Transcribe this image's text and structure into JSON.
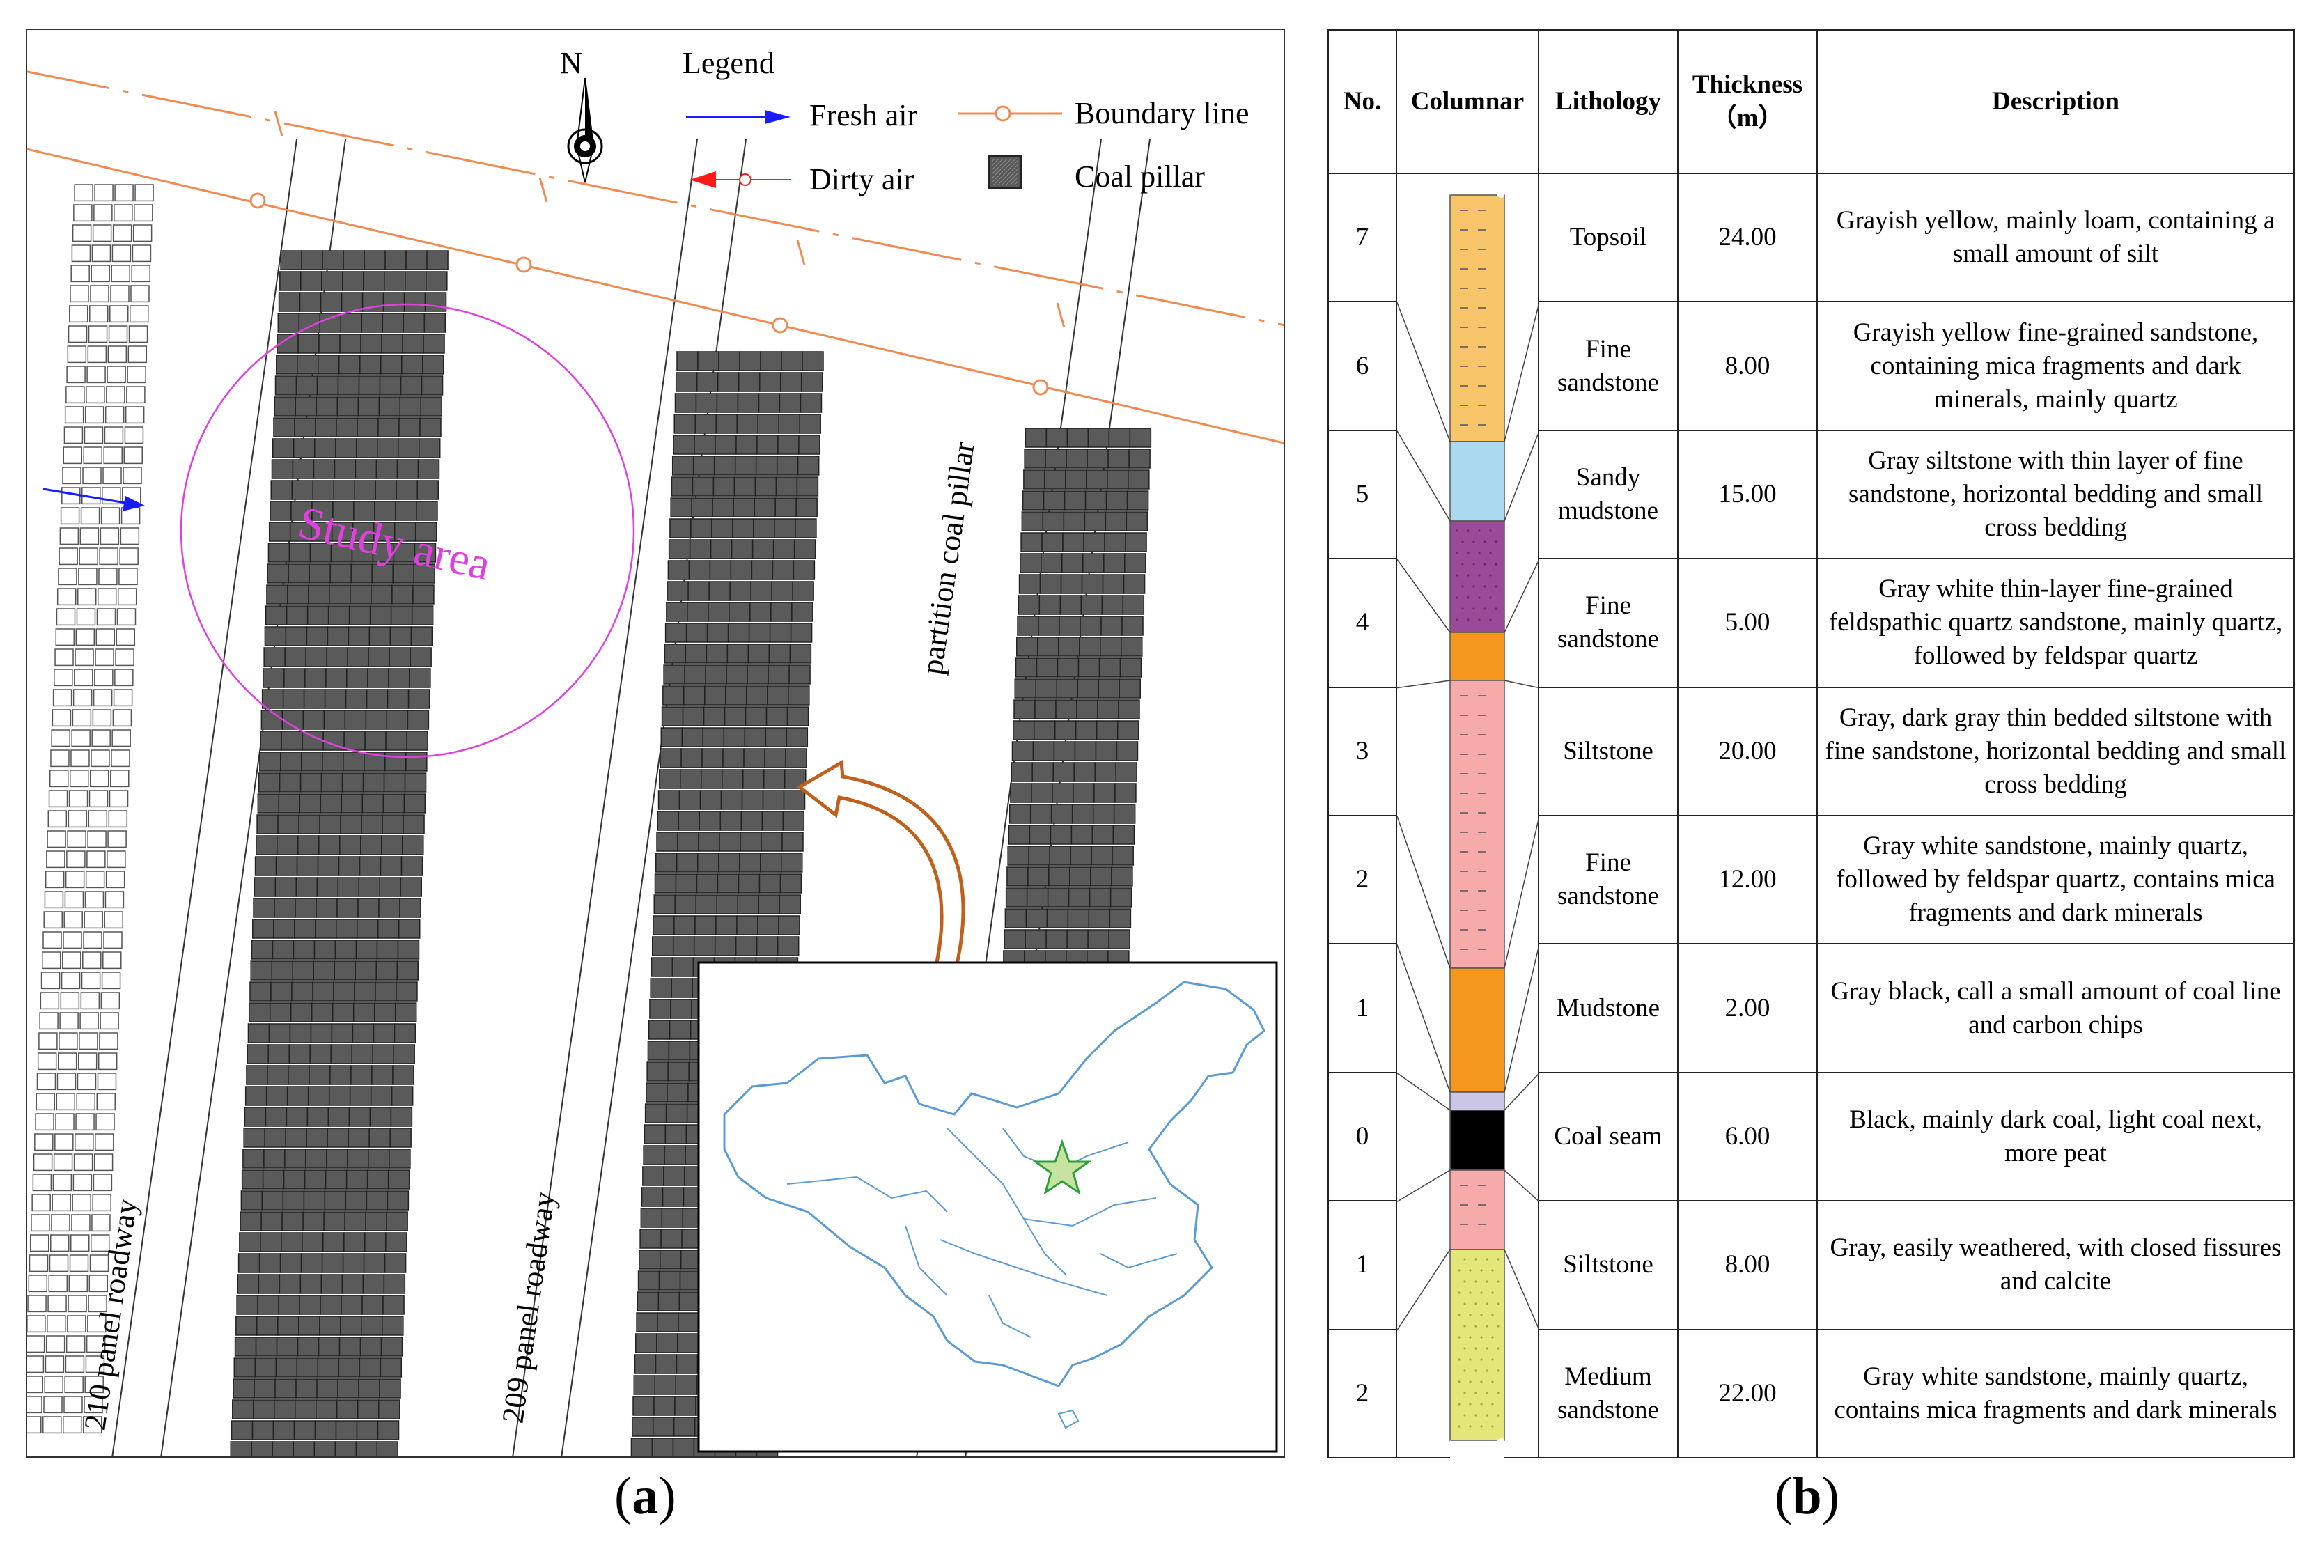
{
  "panel_a": {
    "north_label": "N",
    "legend": {
      "title": "Legend",
      "items": [
        {
          "label": "Fresh air",
          "color": "#1a1aff",
          "icon": "blue-arrow-icon"
        },
        {
          "label": "Dirty air",
          "color": "#ff1a1a",
          "icon": "red-arrow-icon"
        },
        {
          "label": "Boundary line",
          "color": "#f08a50",
          "icon": "boundary-line-icon"
        },
        {
          "label": "Coal pillar",
          "color": "#5a5a5a",
          "icon": "coal-pillar-icon"
        }
      ]
    },
    "study_area_label": "Study area",
    "study_area_color": "#e040e0",
    "partition_label": "partition coal pillar",
    "roadway_210_label": "210 panel roadway",
    "roadway_209_label": "209 panel roadway",
    "caption_label": "a",
    "inset_star_color": "#2f9e3f",
    "inset_map_color": "#5b9bd5",
    "pointer_arrow_color": "#c0601a"
  },
  "panel_b": {
    "caption_label": "b",
    "headers": {
      "no": "No.",
      "columnar": "Columnar",
      "lithology": "Lithology",
      "thickness": "Thickness",
      "thickness_unit": "（m）",
      "description": "Description"
    },
    "rows": [
      {
        "no": "7",
        "lithology": "Topsoil",
        "thickness": "24.00",
        "description": "Grayish yellow, mainly loam, containing a small amount of silt"
      },
      {
        "no": "6",
        "lithology": "Fine sandstone",
        "thickness": "8.00",
        "description": "Grayish yellow fine-grained sandstone, containing mica fragments and dark minerals, mainly quartz"
      },
      {
        "no": "5",
        "lithology": "Sandy mudstone",
        "thickness": "15.00",
        "description": "Gray siltstone with thin layer of fine sandstone, horizontal bedding and small cross bedding"
      },
      {
        "no": "4",
        "lithology": "Fine sandstone",
        "thickness": "5.00",
        "description": "Gray white thin-layer fine-grained feldspathic quartz sandstone, mainly quartz, followed by feldspar quartz"
      },
      {
        "no": "3",
        "lithology": "Siltstone",
        "thickness": "20.00",
        "description": "Gray, dark gray thin bedded siltstone with fine sandstone, horizontal bedding and small cross bedding"
      },
      {
        "no": "2",
        "lithology": "Fine sandstone",
        "thickness": "12.00",
        "description": "Gray white sandstone, mainly quartz, followed by feldspar quartz, contains mica fragments and dark minerals"
      },
      {
        "no": "1",
        "lithology": "Mudstone",
        "thickness": "2.00",
        "description": "Gray black, call a small amount of coal line and carbon chips"
      },
      {
        "no": "0",
        "lithology": "Coal seam",
        "thickness": "6.00",
        "description": "Black, mainly dark coal, light coal next, more peat"
      },
      {
        "no": "1",
        "lithology": "Siltstone",
        "thickness": "8.00",
        "description": "Gray, easily weathered, with closed fissures and calcite"
      },
      {
        "no": "2",
        "lithology": "Medium sandstone",
        "thickness": "22.00",
        "description": "Gray white sandstone, mainly quartz, contains mica fragments and dark minerals"
      }
    ],
    "column_colors": {
      "topsoil": "#f9c56a",
      "sandy_mudstone": "#a9d8ef",
      "fine_sandstone_purple": "#9b4a9a",
      "orange_band": "#f5961e",
      "siltstone_pink": "#f6aaaa",
      "mudstone_lavender": "#c9c6e6",
      "coal": "#000000",
      "medium_sandstone": "#e5e67a"
    }
  }
}
